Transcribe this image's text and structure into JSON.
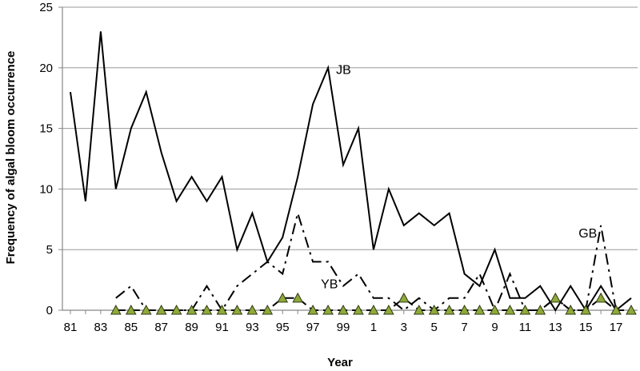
{
  "chart_data": {
    "type": "line",
    "title": "",
    "xlabel": "Year",
    "ylabel": "Frequency of algal bloom occurrence",
    "ylim": [
      0,
      25
    ],
    "yticks": [
      0,
      5,
      10,
      15,
      20,
      25
    ],
    "grid": "horizontal",
    "legend": "none",
    "x": [
      "81",
      "82",
      "83",
      "84",
      "85",
      "86",
      "87",
      "88",
      "89",
      "90",
      "91",
      "92",
      "93",
      "94",
      "95",
      "96",
      "97",
      "98",
      "99",
      "0",
      "1",
      "2",
      "3",
      "4",
      "5",
      "6",
      "7",
      "8",
      "9",
      "10",
      "11",
      "12",
      "13",
      "14",
      "15",
      "16",
      "17",
      "18"
    ],
    "xtick_labels": [
      "81",
      "83",
      "85",
      "87",
      "89",
      "91",
      "93",
      "95",
      "97",
      "99",
      "1",
      "3",
      "5",
      "7",
      "9",
      "11",
      "13",
      "15",
      "17"
    ],
    "series": [
      {
        "name": "JB",
        "line_style": "solid",
        "color": "#000000",
        "values": [
          18,
          9,
          23,
          10,
          15,
          18,
          13,
          9,
          11,
          9,
          11,
          5,
          8,
          4,
          6,
          11,
          17,
          20,
          12,
          15,
          5,
          10,
          7,
          8,
          7,
          8,
          3,
          2,
          5,
          1,
          1,
          2,
          0,
          2,
          0,
          2,
          0,
          1
        ]
      },
      {
        "name": "GB",
        "line_style": "dash-dot",
        "color": "#000000",
        "values": [
          null,
          null,
          null,
          1,
          2,
          0,
          0,
          0,
          0,
          2,
          0,
          2,
          3,
          4,
          3,
          8,
          4,
          4,
          2,
          3,
          1,
          1,
          0,
          1,
          0,
          1,
          1,
          3,
          0,
          3,
          0,
          0,
          1,
          0,
          0,
          7,
          0,
          null
        ]
      },
      {
        "name": "YB",
        "line_style": "dash",
        "color": "#000000",
        "marker": "triangle",
        "marker_color": "#8faa3a",
        "values": [
          null,
          null,
          null,
          0,
          0,
          0,
          0,
          0,
          0,
          0,
          0,
          0,
          0,
          0,
          1,
          1,
          0,
          0,
          0,
          0,
          0,
          0,
          1,
          0,
          0,
          0,
          0,
          0,
          0,
          0,
          0,
          0,
          1,
          0,
          0,
          1,
          0,
          0
        ]
      }
    ],
    "annotations": [
      {
        "text": "JB",
        "x": "98",
        "y": 19.5
      },
      {
        "text": "GB",
        "x": "14",
        "y": 6
      },
      {
        "text": "YB",
        "x": "97",
        "y": 1.8
      }
    ]
  }
}
